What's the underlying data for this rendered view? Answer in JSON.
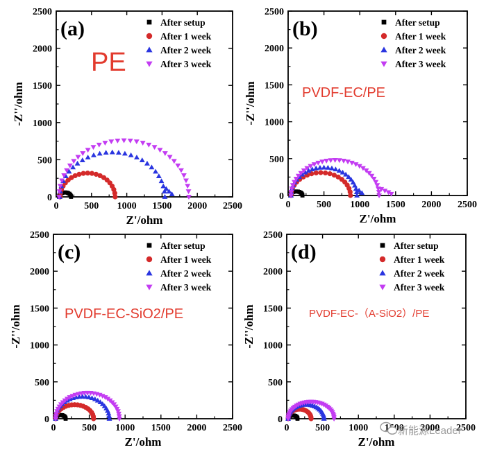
{
  "watermark": "新能源Leader",
  "colors": {
    "After setup": "#000000",
    "After 1 week": "#d42a2a",
    "After 2 week": "#2a35e0",
    "After 3 week": "#c33cf2",
    "annotation": "#e23b2e"
  },
  "chart_data": [
    {
      "type": "scatter",
      "panel_label": "(a)",
      "annotation": "PE",
      "xlabel": "Z'/ohm",
      "ylabel": "-Z''/ohm",
      "xlim": [
        0,
        2500
      ],
      "ylim": [
        0,
        2500
      ],
      "xticks": [
        "0",
        "500",
        "1000",
        "1500",
        "2000",
        "2500"
      ],
      "yticks": [
        "0",
        "500",
        "1000",
        "1500",
        "2000",
        "2500"
      ],
      "legend_position": "top-right",
      "series": [
        {
          "name": "After setup",
          "marker": "square",
          "arcs": [
            {
              "start": 40,
              "end": 210,
              "height": 60
            }
          ]
        },
        {
          "name": "After 1 week",
          "marker": "circle",
          "arcs": [
            {
              "start": 55,
              "end": 835,
              "height": 320
            }
          ]
        },
        {
          "name": "After 2 week",
          "marker": "triangle-up",
          "arcs": [
            {
              "start": 50,
              "end": 1540,
              "height": 600
            }
          ],
          "tail_x": [
            1560,
            1600,
            1640
          ]
        },
        {
          "name": "After 3 week",
          "marker": "triangle-down",
          "arcs": [
            {
              "start": 40,
              "end": 1880,
              "height": 760
            }
          ]
        }
      ]
    },
    {
      "type": "scatter",
      "panel_label": "(b)",
      "annotation": "PVDF-EC/PE",
      "xlabel": "Z'/ohm",
      "ylabel": "-Z''/ohm",
      "xlim": [
        0,
        2500
      ],
      "ylim": [
        0,
        2500
      ],
      "xticks": [
        "0",
        "500",
        "1000",
        "1500",
        "2000",
        "2500"
      ],
      "yticks": [
        "0",
        "500",
        "1000",
        "1500",
        "2000",
        "2500"
      ],
      "legend_position": "top-right",
      "series": [
        {
          "name": "After setup",
          "marker": "square",
          "arcs": [
            {
              "start": 30,
              "end": 200,
              "height": 55
            }
          ]
        },
        {
          "name": "After 1 week",
          "marker": "circle",
          "arcs": [
            {
              "start": 40,
              "end": 870,
              "height": 310
            }
          ]
        },
        {
          "name": "After 2 week",
          "marker": "triangle-up",
          "arcs": [
            {
              "start": 40,
              "end": 960,
              "height": 380
            }
          ],
          "tail_x": [
            990,
            1030
          ]
        },
        {
          "name": "After 3 week",
          "marker": "triangle-down",
          "arcs": [
            {
              "start": 40,
              "end": 1270,
              "height": 480
            }
          ],
          "tail_x": [
            1300,
            1350,
            1400,
            1440
          ]
        }
      ]
    },
    {
      "type": "scatter",
      "panel_label": "(c)",
      "annotation": "PVDF-EC-SiO2/PE",
      "xlabel": "Z'/ohm",
      "ylabel": "-Z''/ohm",
      "xlim": [
        0,
        2500
      ],
      "ylim": [
        0,
        2500
      ],
      "xticks": [
        "0",
        "500",
        "1000",
        "1500",
        "2000",
        "2500"
      ],
      "yticks": [
        "0",
        "500",
        "1000",
        "1500",
        "2000",
        "2500"
      ],
      "legend_position": "top-right",
      "series": [
        {
          "name": "After setup",
          "marker": "square",
          "arcs": [
            {
              "start": 30,
              "end": 170,
              "height": 50
            }
          ]
        },
        {
          "name": "After 1 week",
          "marker": "circle",
          "arcs": [
            {
              "start": 30,
              "end": 560,
              "height": 190
            }
          ]
        },
        {
          "name": "After 2 week",
          "marker": "triangle-up",
          "arcs": [
            {
              "start": 30,
              "end": 780,
              "height": 300
            }
          ]
        },
        {
          "name": "After 3 week",
          "marker": "triangle-down",
          "arcs": [
            {
              "start": 30,
              "end": 920,
              "height": 350
            }
          ]
        }
      ]
    },
    {
      "type": "scatter",
      "panel_label": "(d)",
      "annotation": "PVDF-EC-（A-SiO2）/PE",
      "xlabel": "Z'/ohm",
      "ylabel": "-Z''/ohm",
      "xlim": [
        0,
        2500
      ],
      "ylim": [
        0,
        2500
      ],
      "xticks": [
        "0",
        "500",
        "1000",
        "1500",
        "2000",
        "2500"
      ],
      "yticks": [
        "0",
        "500",
        "1000",
        "1500",
        "2000",
        "2500"
      ],
      "legend_position": "top-right",
      "series": [
        {
          "name": "After setup",
          "marker": "square",
          "arcs": [
            {
              "start": 20,
              "end": 150,
              "height": 45
            }
          ]
        },
        {
          "name": "After 1 week",
          "marker": "circle",
          "arcs": [
            {
              "start": 20,
              "end": 340,
              "height": 130
            }
          ]
        },
        {
          "name": "After 2 week",
          "marker": "triangle-up",
          "arcs": [
            {
              "start": 20,
              "end": 520,
              "height": 190
            }
          ]
        },
        {
          "name": "After 3 week",
          "marker": "triangle-down",
          "arcs": [
            {
              "start": 20,
              "end": 660,
              "height": 230
            }
          ]
        }
      ]
    }
  ]
}
